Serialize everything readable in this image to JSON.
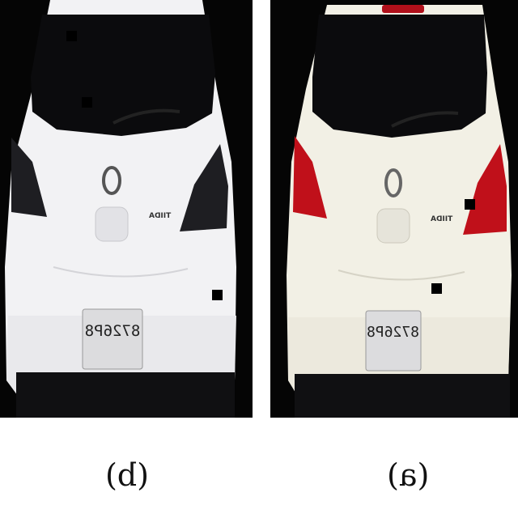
{
  "panels": [
    {
      "id": "b",
      "caption": "(b)",
      "plate_text": "8726P8",
      "badge_text": "TIIDA",
      "taillight_color": "#1e1e22",
      "body_color": "#f4f4f6",
      "lighting": "grayscale low-light"
    },
    {
      "id": "a",
      "caption": "(a)",
      "plate_text": "8726P8",
      "badge_text": "TIIDA",
      "taillight_color": "#c0101a",
      "body_color": "#f3f1e6",
      "lighting": "color"
    }
  ],
  "colors": {
    "background": "#ffffff",
    "scene_background": "#050505",
    "marker": "#000000"
  }
}
